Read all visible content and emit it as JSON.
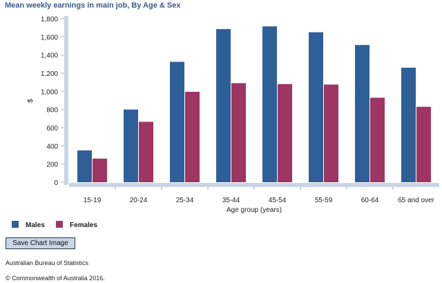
{
  "chart_data": {
    "type": "bar",
    "title": "Mean weekly earnings in main job, By Age & Sex",
    "xlabel": "Age group (years)",
    "ylabel": "$",
    "ylim": [
      0,
      1800
    ],
    "yticks": [
      "0",
      "200",
      "400",
      "600",
      "800",
      "1,000",
      "1,200",
      "1,400",
      "1,600",
      "1,800"
    ],
    "categories": [
      "15-19",
      "20-24",
      "25-34",
      "35-44",
      "45-54",
      "55-59",
      "60-64",
      "65 and over"
    ],
    "series": [
      {
        "name": "Males",
        "color": "#2f5f99",
        "values": [
          350,
          800,
          1325,
          1685,
          1715,
          1650,
          1510,
          1260
        ]
      },
      {
        "name": "Females",
        "color": "#9e3562",
        "values": [
          260,
          665,
          995,
          1090,
          1080,
          1075,
          930,
          830
        ]
      }
    ],
    "grid": false,
    "legend_position": "bottom-left"
  },
  "button": {
    "save_label": "Save Chart Image"
  },
  "footer": {
    "source": "Australian Bureau of Statistics",
    "copyright": "© Commonwealth of Australia 2016."
  }
}
